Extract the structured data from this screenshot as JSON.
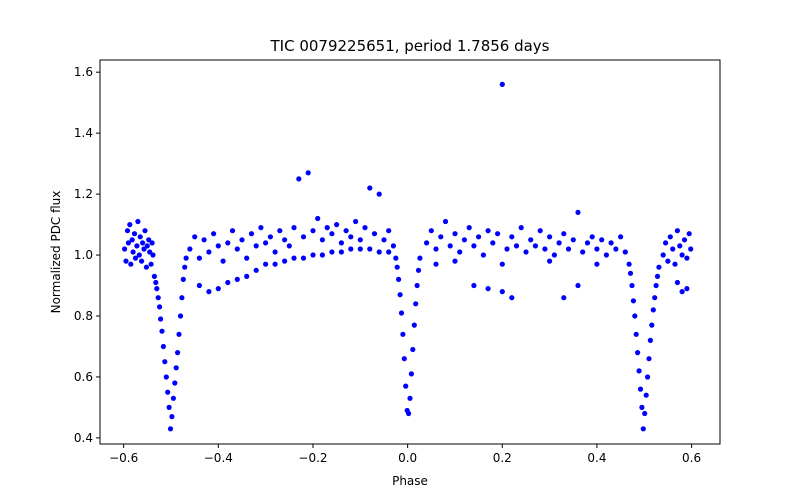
{
  "chart_data": {
    "type": "scatter",
    "title": "TIC 0079225651, period 1.7856 days",
    "xlabel": "Phase",
    "ylabel": "Normalized PDC flux",
    "xlim": [
      -0.65,
      0.66
    ],
    "ylim": [
      0.38,
      1.64
    ],
    "xticks": [
      -0.6,
      -0.4,
      -0.2,
      0.0,
      0.2,
      0.4,
      0.6
    ],
    "xtick_labels": [
      "−0.6",
      "−0.4",
      "−0.2",
      "0.0",
      "0.2",
      "0.4",
      "0.6"
    ],
    "yticks": [
      0.4,
      0.6,
      0.8,
      1.0,
      1.2,
      1.4,
      1.6
    ],
    "ytick_labels": [
      "0.4",
      "0.6",
      "0.8",
      "1.0",
      "1.2",
      "1.4",
      "1.6"
    ],
    "marker_color": "#0000ff",
    "grid": false,
    "series": [
      {
        "name": "PDC flux",
        "points": [
          [
            -0.598,
            1.02
          ],
          [
            -0.595,
            0.98
          ],
          [
            -0.592,
            1.08
          ],
          [
            -0.59,
            1.04
          ],
          [
            -0.587,
            1.1
          ],
          [
            -0.585,
            0.97
          ],
          [
            -0.582,
            1.05
          ],
          [
            -0.58,
            1.01
          ],
          [
            -0.577,
            1.07
          ],
          [
            -0.575,
            0.99
          ],
          [
            -0.572,
            1.03
          ],
          [
            -0.57,
            1.11
          ],
          [
            -0.567,
            1.0
          ],
          [
            -0.565,
            1.06
          ],
          [
            -0.562,
            0.98
          ],
          [
            -0.56,
            1.04
          ],
          [
            -0.557,
            1.02
          ],
          [
            -0.555,
            1.08
          ],
          [
            -0.552,
            0.96
          ],
          [
            -0.55,
            1.03
          ],
          [
            -0.547,
            1.05
          ],
          [
            -0.545,
            1.01
          ],
          [
            -0.542,
            0.97
          ],
          [
            -0.54,
            1.04
          ],
          [
            -0.538,
            1.0
          ],
          [
            -0.535,
            0.93
          ],
          [
            -0.532,
            0.91
          ],
          [
            -0.53,
            0.89
          ],
          [
            -0.527,
            0.86
          ],
          [
            -0.524,
            0.83
          ],
          [
            -0.522,
            0.79
          ],
          [
            -0.519,
            0.75
          ],
          [
            -0.516,
            0.7
          ],
          [
            -0.513,
            0.65
          ],
          [
            -0.51,
            0.6
          ],
          [
            -0.507,
            0.55
          ],
          [
            -0.504,
            0.5
          ],
          [
            -0.501,
            0.43
          ],
          [
            -0.498,
            0.47
          ],
          [
            -0.495,
            0.53
          ],
          [
            -0.492,
            0.58
          ],
          [
            -0.489,
            0.63
          ],
          [
            -0.486,
            0.68
          ],
          [
            -0.483,
            0.74
          ],
          [
            -0.48,
            0.8
          ],
          [
            -0.477,
            0.86
          ],
          [
            -0.474,
            0.92
          ],
          [
            -0.471,
            0.96
          ],
          [
            -0.468,
            0.99
          ],
          [
            -0.46,
            1.02
          ],
          [
            -0.45,
            1.06
          ],
          [
            -0.44,
            0.99
          ],
          [
            -0.43,
            1.05
          ],
          [
            -0.42,
            1.01
          ],
          [
            -0.41,
            1.07
          ],
          [
            -0.4,
            1.03
          ],
          [
            -0.39,
            0.98
          ],
          [
            -0.38,
            1.04
          ],
          [
            -0.37,
            1.08
          ],
          [
            -0.36,
            1.02
          ],
          [
            -0.35,
            1.05
          ],
          [
            -0.34,
            0.99
          ],
          [
            -0.33,
            1.07
          ],
          [
            -0.32,
            1.03
          ],
          [
            -0.31,
            1.09
          ],
          [
            -0.3,
            1.04
          ],
          [
            -0.29,
            1.06
          ],
          [
            -0.28,
            1.01
          ],
          [
            -0.27,
            1.08
          ],
          [
            -0.26,
            1.05
          ],
          [
            -0.25,
            1.03
          ],
          [
            -0.24,
            1.09
          ],
          [
            -0.23,
            1.25
          ],
          [
            -0.22,
            1.06
          ],
          [
            -0.21,
            1.27
          ],
          [
            -0.2,
            1.08
          ],
          [
            -0.19,
            1.12
          ],
          [
            -0.18,
            1.05
          ],
          [
            -0.17,
            1.09
          ],
          [
            -0.16,
            1.07
          ],
          [
            -0.15,
            1.1
          ],
          [
            -0.14,
            1.04
          ],
          [
            -0.13,
            1.08
          ],
          [
            -0.12,
            1.06
          ],
          [
            -0.11,
            1.11
          ],
          [
            -0.1,
            1.05
          ],
          [
            -0.09,
            1.09
          ],
          [
            -0.08,
            1.22
          ],
          [
            -0.07,
            1.07
          ],
          [
            -0.06,
            1.2
          ],
          [
            -0.05,
            1.05
          ],
          [
            -0.04,
            1.08
          ],
          [
            -0.03,
            1.03
          ],
          [
            -0.44,
            0.9
          ],
          [
            -0.42,
            0.88
          ],
          [
            -0.4,
            0.89
          ],
          [
            -0.38,
            0.91
          ],
          [
            -0.36,
            0.92
          ],
          [
            -0.34,
            0.93
          ],
          [
            -0.32,
            0.95
          ],
          [
            -0.3,
            0.97
          ],
          [
            -0.28,
            0.97
          ],
          [
            -0.26,
            0.98
          ],
          [
            -0.24,
            0.99
          ],
          [
            -0.22,
            0.99
          ],
          [
            -0.2,
            1.0
          ],
          [
            -0.18,
            1.0
          ],
          [
            -0.16,
            1.01
          ],
          [
            -0.14,
            1.01
          ],
          [
            -0.12,
            1.02
          ],
          [
            -0.1,
            1.02
          ],
          [
            -0.08,
            1.02
          ],
          [
            -0.06,
            1.01
          ],
          [
            -0.04,
            1.01
          ],
          [
            -0.025,
            0.99
          ],
          [
            -0.022,
            0.96
          ],
          [
            -0.019,
            0.92
          ],
          [
            -0.016,
            0.87
          ],
          [
            -0.013,
            0.81
          ],
          [
            -0.01,
            0.74
          ],
          [
            -0.007,
            0.66
          ],
          [
            -0.004,
            0.57
          ],
          [
            -0.001,
            0.49
          ],
          [
            0.002,
            0.48
          ],
          [
            0.005,
            0.53
          ],
          [
            0.008,
            0.61
          ],
          [
            0.011,
            0.69
          ],
          [
            0.014,
            0.77
          ],
          [
            0.017,
            0.84
          ],
          [
            0.02,
            0.9
          ],
          [
            0.023,
            0.95
          ],
          [
            0.026,
            0.99
          ],
          [
            0.04,
            1.04
          ],
          [
            0.05,
            1.08
          ],
          [
            0.06,
            1.02
          ],
          [
            0.07,
            1.06
          ],
          [
            0.08,
            1.11
          ],
          [
            0.09,
            1.03
          ],
          [
            0.1,
            1.07
          ],
          [
            0.11,
            1.01
          ],
          [
            0.12,
            1.05
          ],
          [
            0.13,
            1.09
          ],
          [
            0.14,
            1.03
          ],
          [
            0.15,
            1.06
          ],
          [
            0.16,
            1.0
          ],
          [
            0.17,
            1.08
          ],
          [
            0.18,
            1.04
          ],
          [
            0.19,
            1.07
          ],
          [
            0.2,
            1.56
          ],
          [
            0.21,
            1.02
          ],
          [
            0.22,
            1.06
          ],
          [
            0.23,
            1.03
          ],
          [
            0.24,
            1.09
          ],
          [
            0.25,
            1.01
          ],
          [
            0.26,
            1.05
          ],
          [
            0.27,
            1.03
          ],
          [
            0.28,
            1.08
          ],
          [
            0.29,
            1.02
          ],
          [
            0.3,
            1.06
          ],
          [
            0.31,
            1.0
          ],
          [
            0.32,
            1.04
          ],
          [
            0.33,
            1.07
          ],
          [
            0.34,
            1.02
          ],
          [
            0.35,
            1.05
          ],
          [
            0.36,
            1.14
          ],
          [
            0.37,
            1.01
          ],
          [
            0.38,
            1.04
          ],
          [
            0.39,
            1.06
          ],
          [
            0.4,
            1.02
          ],
          [
            0.41,
            1.05
          ],
          [
            0.42,
            1.0
          ],
          [
            0.43,
            1.04
          ],
          [
            0.44,
            1.02
          ],
          [
            0.45,
            1.06
          ],
          [
            0.46,
            1.01
          ],
          [
            0.14,
            0.9
          ],
          [
            0.17,
            0.89
          ],
          [
            0.2,
            0.88
          ],
          [
            0.22,
            0.86
          ],
          [
            0.33,
            0.86
          ],
          [
            0.36,
            0.9
          ],
          [
            0.06,
            0.97
          ],
          [
            0.1,
            0.98
          ],
          [
            0.2,
            0.97
          ],
          [
            0.3,
            0.98
          ],
          [
            0.4,
            0.97
          ],
          [
            0.468,
            0.97
          ],
          [
            0.471,
            0.94
          ],
          [
            0.474,
            0.9
          ],
          [
            0.477,
            0.85
          ],
          [
            0.48,
            0.8
          ],
          [
            0.483,
            0.74
          ],
          [
            0.486,
            0.68
          ],
          [
            0.489,
            0.62
          ],
          [
            0.492,
            0.56
          ],
          [
            0.495,
            0.5
          ],
          [
            0.498,
            0.43
          ],
          [
            0.501,
            0.48
          ],
          [
            0.504,
            0.54
          ],
          [
            0.507,
            0.6
          ],
          [
            0.51,
            0.66
          ],
          [
            0.513,
            0.72
          ],
          [
            0.516,
            0.77
          ],
          [
            0.519,
            0.82
          ],
          [
            0.522,
            0.86
          ],
          [
            0.525,
            0.9
          ],
          [
            0.528,
            0.93
          ],
          [
            0.531,
            0.96
          ],
          [
            0.54,
            1.0
          ],
          [
            0.545,
            1.04
          ],
          [
            0.55,
            0.98
          ],
          [
            0.555,
            1.06
          ],
          [
            0.56,
            1.02
          ],
          [
            0.565,
            0.97
          ],
          [
            0.57,
            1.08
          ],
          [
            0.575,
            1.03
          ],
          [
            0.58,
            1.0
          ],
          [
            0.585,
            1.05
          ],
          [
            0.59,
            0.99
          ],
          [
            0.595,
            1.07
          ],
          [
            0.598,
            1.02
          ],
          [
            0.57,
            0.91
          ],
          [
            0.58,
            0.88
          ],
          [
            0.59,
            0.89
          ]
        ]
      }
    ]
  }
}
